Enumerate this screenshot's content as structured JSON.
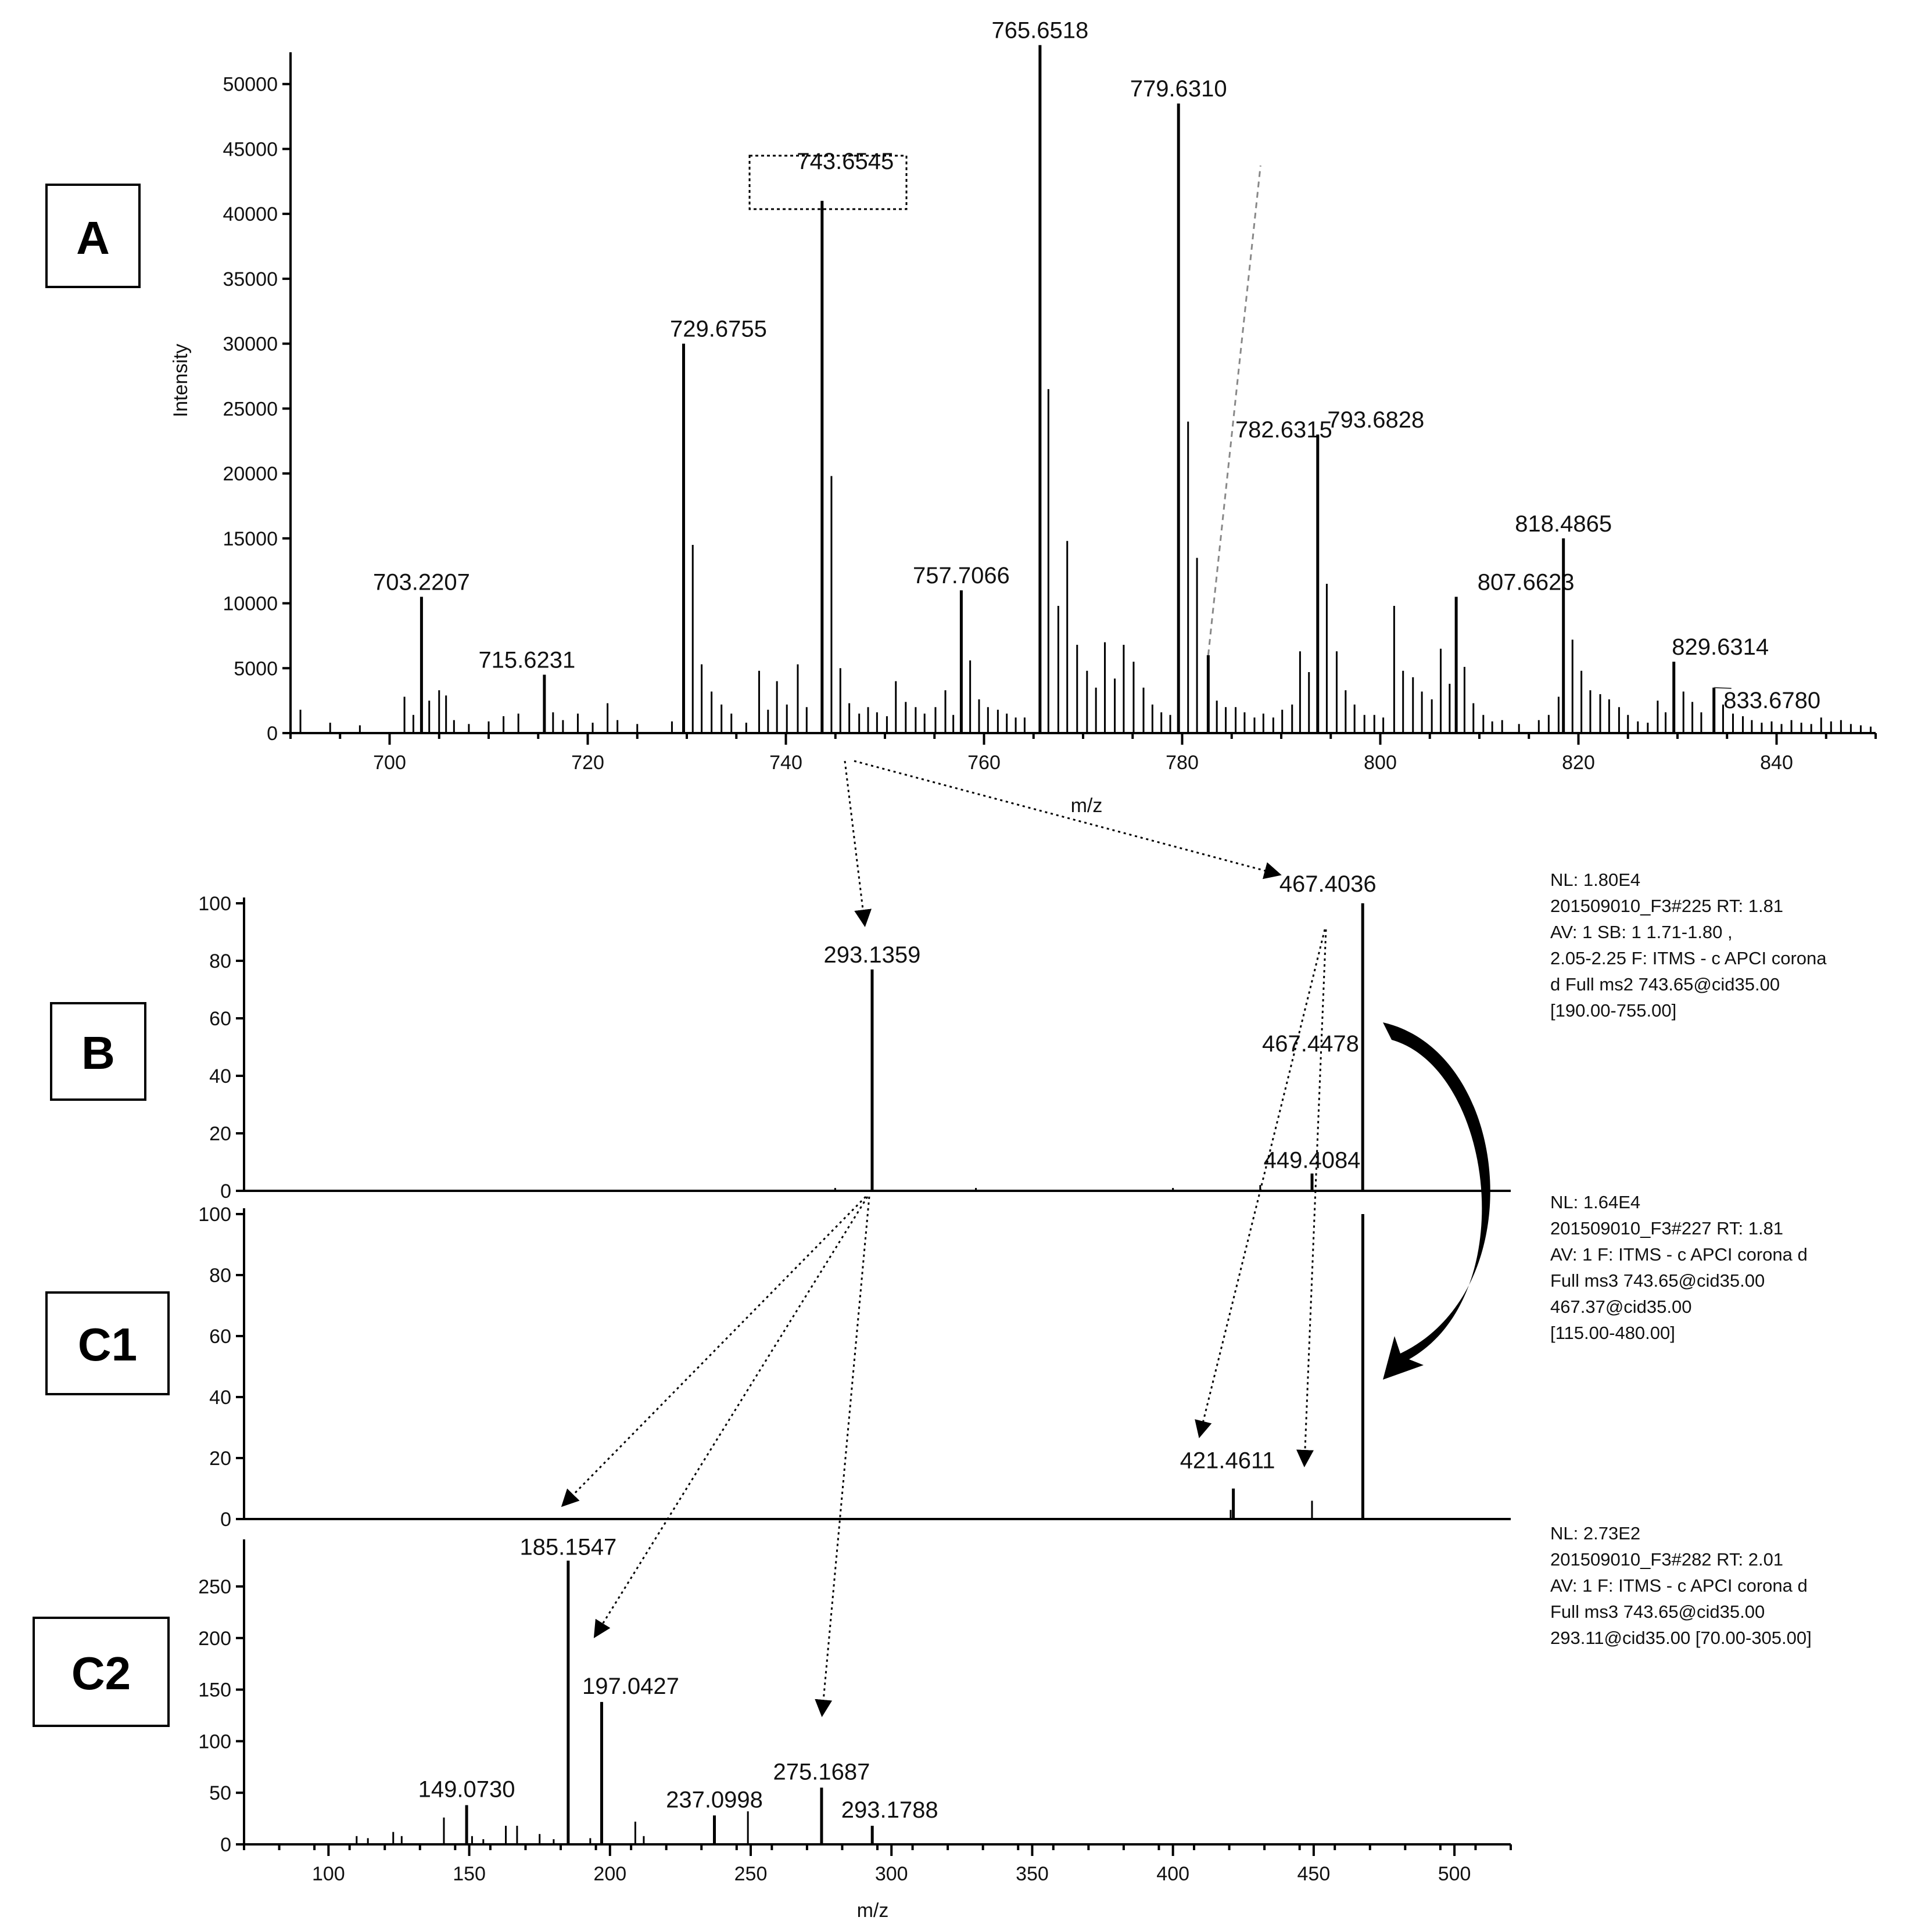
{
  "chart_data": [
    {
      "panel": "A",
      "type": "bar",
      "xlabel": "m/z",
      "ylabel": "Intensity",
      "xlim": [
        690,
        850
      ],
      "ylim": [
        0,
        52000
      ],
      "xticks": [
        700,
        720,
        740,
        760,
        780,
        800,
        820,
        840
      ],
      "yticks": [
        0,
        5000,
        10000,
        15000,
        20000,
        25000,
        30000,
        35000,
        40000,
        45000,
        50000
      ],
      "highlight": "743.6545",
      "labeled_peaks": [
        {
          "x": 703.2207,
          "y": 10500,
          "label": "703.2207"
        },
        {
          "x": 715.6231,
          "y": 4500,
          "label": "715.6231"
        },
        {
          "x": 729.6755,
          "y": 30000,
          "label": "729.6755"
        },
        {
          "x": 743.6545,
          "y": 41000,
          "label": "743.6545"
        },
        {
          "x": 757.7066,
          "y": 11000,
          "label": "757.7066"
        },
        {
          "x": 765.6518,
          "y": 53000,
          "label": "765.6518"
        },
        {
          "x": 779.631,
          "y": 48500,
          "label": "779.6310"
        },
        {
          "x": 782.6315,
          "y": 6000,
          "label": "782.6315"
        },
        {
          "x": 793.6828,
          "y": 23000,
          "label": "793.6828"
        },
        {
          "x": 807.6623,
          "y": 10500,
          "label": "807.6623"
        },
        {
          "x": 818.4865,
          "y": 15000,
          "label": "818.4865"
        },
        {
          "x": 829.6314,
          "y": 5500,
          "label": "829.6314"
        },
        {
          "x": 833.678,
          "y": 3500,
          "label": "833.6780"
        }
      ],
      "other_peaks": [
        [
          691,
          1800
        ],
        [
          694,
          800
        ],
        [
          697,
          600
        ],
        [
          701.5,
          2800
        ],
        [
          702.4,
          1400
        ],
        [
          704,
          2500
        ],
        [
          705,
          3300
        ],
        [
          705.7,
          2900
        ],
        [
          706.5,
          1000
        ],
        [
          708,
          700
        ],
        [
          710,
          900
        ],
        [
          711.5,
          1300
        ],
        [
          713,
          1500
        ],
        [
          716.5,
          1600
        ],
        [
          717.5,
          1000
        ],
        [
          719,
          1500
        ],
        [
          720.5,
          800
        ],
        [
          722,
          2300
        ],
        [
          723,
          1000
        ],
        [
          725,
          700
        ],
        [
          728.5,
          900
        ],
        [
          730.6,
          14500
        ],
        [
          731.5,
          5300
        ],
        [
          732.5,
          3200
        ],
        [
          733.5,
          2200
        ],
        [
          734.5,
          1500
        ],
        [
          736,
          800
        ],
        [
          737.3,
          4800
        ],
        [
          738.2,
          1800
        ],
        [
          739.1,
          4000
        ],
        [
          740.1,
          2200
        ],
        [
          741.2,
          5300
        ],
        [
          742.1,
          2000
        ],
        [
          744.6,
          19800
        ],
        [
          745.5,
          5000
        ],
        [
          746.4,
          2300
        ],
        [
          747.4,
          1500
        ],
        [
          748.3,
          2000
        ],
        [
          749.2,
          1600
        ],
        [
          750.2,
          1300
        ],
        [
          751.1,
          4000
        ],
        [
          752.1,
          2400
        ],
        [
          753.1,
          2000
        ],
        [
          754,
          1500
        ],
        [
          755.1,
          2000
        ],
        [
          756.1,
          3300
        ],
        [
          756.9,
          1400
        ],
        [
          758.6,
          5600
        ],
        [
          759.5,
          2600
        ],
        [
          760.4,
          2000
        ],
        [
          761.4,
          1800
        ],
        [
          762.3,
          1500
        ],
        [
          763.2,
          1200
        ],
        [
          764.1,
          1200
        ],
        [
          766.5,
          26500
        ],
        [
          767.5,
          9800
        ],
        [
          768.4,
          14800
        ],
        [
          769.4,
          6800
        ],
        [
          770.4,
          4800
        ],
        [
          771.3,
          3500
        ],
        [
          772.2,
          7000
        ],
        [
          773.2,
          4200
        ],
        [
          774.1,
          6800
        ],
        [
          775.1,
          5500
        ],
        [
          776.1,
          3500
        ],
        [
          777,
          2200
        ],
        [
          777.9,
          1600
        ],
        [
          778.8,
          1400
        ],
        [
          780.6,
          24000
        ],
        [
          781.5,
          13500
        ],
        [
          783.5,
          2500
        ],
        [
          784.4,
          2000
        ],
        [
          785.4,
          2000
        ],
        [
          786.3,
          1600
        ],
        [
          787.3,
          1200
        ],
        [
          788.2,
          1500
        ],
        [
          789.2,
          1200
        ],
        [
          790.1,
          1800
        ],
        [
          791.1,
          2200
        ],
        [
          791.9,
          6300
        ],
        [
          792.8,
          4700
        ],
        [
          794.6,
          11500
        ],
        [
          795.6,
          6300
        ],
        [
          796.5,
          3300
        ],
        [
          797.4,
          2200
        ],
        [
          798.4,
          1400
        ],
        [
          799.4,
          1400
        ],
        [
          800.3,
          1200
        ],
        [
          801.4,
          9800
        ],
        [
          802.3,
          4800
        ],
        [
          803.3,
          4300
        ],
        [
          804.2,
          3200
        ],
        [
          805.2,
          2600
        ],
        [
          806.1,
          6500
        ],
        [
          807,
          3800
        ],
        [
          808.5,
          5100
        ],
        [
          809.4,
          2300
        ],
        [
          810.4,
          1400
        ],
        [
          811.3,
          900
        ],
        [
          812.3,
          1000
        ],
        [
          814,
          700
        ],
        [
          816,
          1000
        ],
        [
          817,
          1400
        ],
        [
          818,
          2800
        ],
        [
          819.4,
          7200
        ],
        [
          820.3,
          4800
        ],
        [
          821.2,
          3300
        ],
        [
          822.2,
          3000
        ],
        [
          823.1,
          2600
        ],
        [
          824.1,
          2000
        ],
        [
          825,
          1400
        ],
        [
          826,
          900
        ],
        [
          827,
          800
        ],
        [
          828,
          2500
        ],
        [
          828.8,
          1600
        ],
        [
          830.6,
          3200
        ],
        [
          831.5,
          2400
        ],
        [
          832.4,
          1600
        ],
        [
          834.6,
          2200
        ],
        [
          835.6,
          1500
        ],
        [
          836.6,
          1300
        ],
        [
          837.5,
          1000
        ],
        [
          838.5,
          800
        ],
        [
          839.5,
          900
        ],
        [
          840.5,
          700
        ],
        [
          841.5,
          1000
        ],
        [
          842.5,
          800
        ],
        [
          843.5,
          700
        ],
        [
          844.5,
          1200
        ],
        [
          845.5,
          900
        ],
        [
          846.5,
          1000
        ],
        [
          847.5,
          700
        ],
        [
          848.5,
          600
        ],
        [
          849.5,
          500
        ]
      ]
    },
    {
      "panel": "B",
      "type": "bar",
      "xlim": [
        70,
        520
      ],
      "ylim": [
        0,
        100
      ],
      "yticks": [
        0,
        20,
        40,
        60,
        80,
        100
      ],
      "info": [
        "NL: 1.80E4",
        "201509010_F3#225  RT: 1.81",
        "AV: 1 SB: 1   1.71-1.80  ,",
        "2.05-2.25 F: ITMS - c APCI corona",
        "d Full ms2 743.65@cid35.00",
        "[190.00-755.00]"
      ],
      "labeled_peaks": [
        {
          "x": 293.1359,
          "y": 77,
          "label": "293.1359"
        },
        {
          "x": 449.4084,
          "y": 6,
          "label": "449.4084"
        },
        {
          "x": 467.4036,
          "y": 100,
          "label": "467.4036"
        }
      ],
      "other_peaks": [
        [
          431,
          2
        ],
        [
          449.4,
          6
        ],
        [
          280,
          1
        ],
        [
          330,
          1
        ],
        [
          400,
          1
        ]
      ]
    },
    {
      "panel": "C1",
      "type": "bar",
      "xlim": [
        70,
        520
      ],
      "ylim": [
        0,
        100
      ],
      "yticks": [
        0,
        20,
        40,
        60,
        80,
        100
      ],
      "info": [
        "NL: 1.64E4",
        "201509010_F3#227  RT: 1.81",
        "AV: 1 F: ITMS - c APCI corona d",
        "Full ms3 743.65@cid35.00",
        "467.37@cid35.00",
        "[115.00-480.00]"
      ],
      "labeled_peaks": [
        {
          "x": 421.4611,
          "y": 10,
          "label": "421.4611"
        },
        {
          "x": 467.4478,
          "y": 100,
          "label": "467.4478"
        }
      ],
      "other_peaks": [
        [
          449.4,
          6
        ],
        [
          420.5,
          3
        ]
      ]
    },
    {
      "panel": "C2",
      "type": "bar",
      "xlabel": "m/z",
      "xlim": [
        70,
        520
      ],
      "ylim": [
        0,
        290
      ],
      "xticks": [
        100,
        150,
        200,
        250,
        300,
        350,
        400,
        450,
        500
      ],
      "yticks": [
        0,
        50,
        100,
        150,
        200,
        250
      ],
      "info": [
        "NL: 2.73E2",
        "201509010_F3#282  RT: 2.01",
        "AV: 1 F: ITMS - c APCI corona d",
        "Full ms3 743.65@cid35.00",
        "293.11@cid35.00 [70.00-305.00]"
      ],
      "labeled_peaks": [
        {
          "x": 149.073,
          "y": 38,
          "label": "149.0730"
        },
        {
          "x": 185.1547,
          "y": 275,
          "label": "185.1547"
        },
        {
          "x": 197.0427,
          "y": 138,
          "label": "197.0427"
        },
        {
          "x": 237.0998,
          "y": 28,
          "label": "237.0998"
        },
        {
          "x": 275.1687,
          "y": 55,
          "label": "275.1687"
        },
        {
          "x": 293.1788,
          "y": 18,
          "label": "293.1788"
        }
      ],
      "other_peaks": [
        [
          110,
          8
        ],
        [
          114,
          6
        ],
        [
          123,
          12
        ],
        [
          126,
          8
        ],
        [
          141,
          26
        ],
        [
          151,
          8
        ],
        [
          155,
          5
        ],
        [
          163,
          18
        ],
        [
          167,
          18
        ],
        [
          175,
          10
        ],
        [
          180,
          5
        ],
        [
          193,
          6
        ],
        [
          209,
          22
        ],
        [
          212,
          8
        ],
        [
          249,
          32
        ]
      ]
    }
  ],
  "panel_labels": [
    "A",
    "B",
    "C1",
    "C2"
  ]
}
